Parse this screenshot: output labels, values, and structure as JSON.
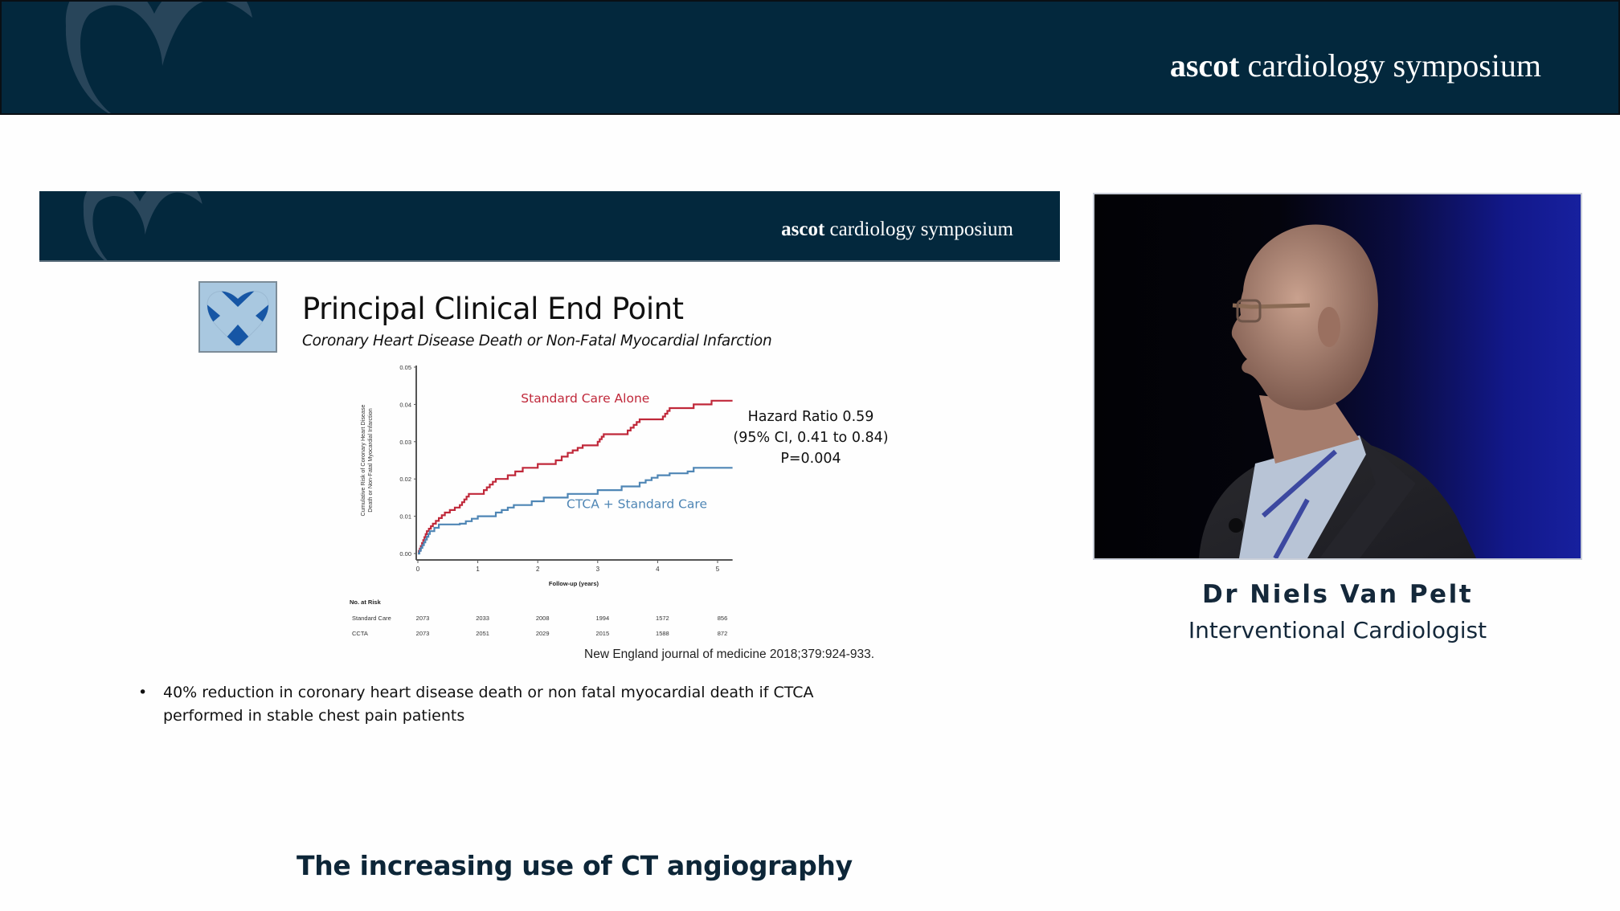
{
  "header": {
    "brand_bold": "ascot",
    "brand_rest": " cardiology symposium",
    "colors": {
      "banner_bg": "#03283d",
      "watermark": "#2c4a60"
    }
  },
  "slide": {
    "banner": {
      "brand_bold": "ascot",
      "brand_rest": " cardiology symposium"
    },
    "logo_icon": "scottish-saltire-heart-icon",
    "title": "Principal Clinical End Point",
    "subtitle": "Coronary Heart Disease Death or Non-Fatal Myocardial Infarction",
    "hazard": {
      "line1": "Hazard Ratio 0.59",
      "line2": "(95% CI, 0.41 to 0.84)",
      "line3": "P=0.004"
    },
    "citation": "New England journal of medicine 2018;379:924-933.",
    "bullets": [
      {
        "marker": "•",
        "text": "40% reduction in coronary heart disease death or non fatal myocardial death if CTCA performed in stable chest pain patients"
      }
    ]
  },
  "chart_data": {
    "type": "line",
    "subtype": "kaplan-meier-step",
    "title": "",
    "xlabel": "Follow-up (years)",
    "ylabel_line1": "Cumulative Risk of Coronary Heart Disease",
    "ylabel_line2": "Death or Non-Fatal Myocardial Infarction",
    "xlim": [
      0,
      5.25
    ],
    "ylim": [
      0,
      0.05
    ],
    "xticks": [
      "0",
      "1",
      "2",
      "3",
      "4",
      "5"
    ],
    "yticks": [
      "0.00",
      "0.01",
      "0.02",
      "0.03",
      "0.04",
      "0.05"
    ],
    "grid": false,
    "legend_position": "inline labels",
    "series": [
      {
        "name": "Standard Care Alone",
        "color": "#c0283a",
        "x": [
          0,
          0.05,
          0.15,
          0.25,
          0.45,
          0.7,
          0.85,
          1.1,
          1.3,
          1.5,
          1.75,
          2.0,
          2.3,
          2.5,
          2.75,
          3.0,
          3.1,
          3.5,
          3.7,
          4.05,
          4.2,
          4.6,
          4.9,
          5.25
        ],
        "y": [
          0,
          0.002,
          0.006,
          0.008,
          0.011,
          0.013,
          0.016,
          0.017,
          0.02,
          0.021,
          0.023,
          0.024,
          0.025,
          0.027,
          0.029,
          0.03,
          0.032,
          0.033,
          0.036,
          0.036,
          0.039,
          0.04,
          0.041,
          0.041
        ]
      },
      {
        "name": "CTCA + Standard Care",
        "color": "#4f86b5",
        "x": [
          0,
          0.1,
          0.2,
          0.35,
          0.7,
          1.0,
          1.3,
          1.6,
          1.9,
          2.1,
          2.5,
          3.0,
          3.4,
          3.7,
          4.0,
          4.2,
          4.5,
          4.6,
          5.25
        ],
        "y": [
          0,
          0.003,
          0.006,
          0.0078,
          0.008,
          0.01,
          0.011,
          0.013,
          0.014,
          0.015,
          0.016,
          0.017,
          0.018,
          0.019,
          0.021,
          0.0215,
          0.022,
          0.023,
          0.023
        ]
      }
    ],
    "labels": {
      "standard": "Standard Care Alone",
      "ctca": "CTCA + Standard Care"
    },
    "risk_table": {
      "title": "No. at Risk",
      "rows": [
        {
          "label": "Standard Care",
          "values": [
            "2073",
            "2033",
            "2008",
            "1994",
            "1572",
            "856"
          ]
        },
        {
          "label": "CCTA",
          "values": [
            "2073",
            "2051",
            "2029",
            "2015",
            "1588",
            "872"
          ]
        }
      ]
    }
  },
  "speaker": {
    "name": "Dr Niels Van Pelt",
    "role": "Interventional Cardiologist",
    "video_alt": "speaker video feed"
  },
  "talk": {
    "title": "The increasing use of CT angiography"
  }
}
